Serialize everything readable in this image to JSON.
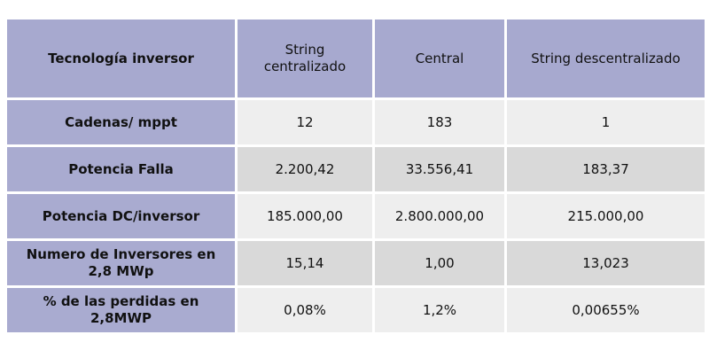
{
  "table": {
    "header": [
      "Tecnología inversor",
      "String centralizado",
      "Central",
      "String descentralizado"
    ],
    "rows": [
      [
        "Cadenas/ mppt",
        "12",
        "183",
        "1"
      ],
      [
        "Potencia Falla",
        "2.200,42",
        "33.556,41",
        "183,37"
      ],
      [
        "Potencia DC/inversor",
        "185.000,00",
        "2.800.000,00",
        "215.000,00"
      ],
      [
        "Numero de Inversores en 2,8 MWp",
        "15,14",
        "1,00",
        "13,023"
      ],
      [
        "% de las perdidas en 2,8MWP",
        "0,08%",
        "1,2%",
        "0,00655%"
      ]
    ]
  }
}
